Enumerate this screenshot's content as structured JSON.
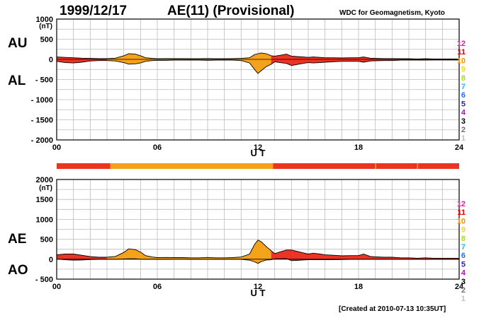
{
  "header": {
    "date": "1999/12/17",
    "title": "AE(11) (Provisional)",
    "source": "WDC for Geomagnetism, Kyoto",
    "created": "[Created at 2010-07-13 10:35UT]"
  },
  "side_labels": {
    "au": "AU",
    "al": "AL",
    "ae": "AE",
    "ao": "AO"
  },
  "legend_station_count": [
    {
      "label": "12",
      "color": "#ff1493"
    },
    {
      "label": "11",
      "color": "#dd0000"
    },
    {
      "label": "10",
      "color": "#ff8c00"
    },
    {
      "label": "9",
      "color": "#ffd700"
    },
    {
      "label": "8",
      "color": "#a0e020"
    },
    {
      "label": "7",
      "color": "#20c0e0"
    },
    {
      "label": "6",
      "color": "#1e70ff"
    },
    {
      "label": "5",
      "color": "#3020c0"
    },
    {
      "label": "4",
      "color": "#cc00cc"
    },
    {
      "label": "3",
      "color": "#000000"
    },
    {
      "label": "2",
      "color": "#707070"
    },
    {
      "label": "1",
      "color": "#c0c0c0"
    }
  ],
  "colors": {
    "eleven_stations": "#ee3322",
    "ten_stations": "#f4a21c"
  },
  "chart_data": [
    {
      "type": "area",
      "panel": "AU/AL",
      "ylabel_unit": "(nT)",
      "xlabel": "U T",
      "xlim": [
        0,
        24
      ],
      "ylim": [
        -2000,
        1000
      ],
      "x_ticks": [
        "00",
        "06",
        "12",
        "18",
        "24"
      ],
      "y_ticks": [
        "1000",
        "500",
        "0",
        "- 500",
        "- 1000",
        "- 1500",
        "- 2000"
      ],
      "y_tick_values": [
        1000,
        500,
        0,
        -500,
        -1000,
        -1500,
        -2000
      ],
      "grid": true,
      "series": [
        {
          "name": "AU",
          "x": [
            0,
            0.5,
            1,
            1.5,
            2,
            2.5,
            3,
            3.5,
            4,
            4.3,
            4.7,
            5,
            5.3,
            5.7,
            6,
            6.5,
            7,
            7.5,
            8,
            8.5,
            9,
            9.5,
            10,
            10.5,
            11,
            11.5,
            11.8,
            12,
            12.2,
            12.5,
            12.8,
            13,
            13.3,
            13.7,
            14,
            14.3,
            14.7,
            15,
            15.3,
            15.7,
            16,
            16.5,
            17,
            17.5,
            18,
            18.3,
            18.7,
            19,
            19.5,
            20,
            20.5,
            21,
            21.5,
            22,
            22.5,
            23,
            23.5,
            24
          ],
          "values": [
            60,
            50,
            40,
            30,
            25,
            20,
            20,
            30,
            90,
            140,
            130,
            90,
            40,
            25,
            15,
            20,
            20,
            20,
            15,
            15,
            20,
            15,
            15,
            20,
            25,
            40,
            120,
            140,
            160,
            140,
            90,
            80,
            100,
            130,
            80,
            70,
            60,
            50,
            60,
            50,
            40,
            40,
            35,
            40,
            40,
            60,
            30,
            25,
            20,
            20,
            15,
            15,
            10,
            15,
            10,
            10,
            10,
            10
          ]
        },
        {
          "name": "AL",
          "x": [
            0,
            0.5,
            1,
            1.5,
            2,
            2.5,
            3,
            3.5,
            4,
            4.3,
            4.7,
            5,
            5.3,
            5.7,
            6,
            6.5,
            7,
            7.5,
            8,
            8.5,
            9,
            9.5,
            10,
            10.5,
            11,
            11.5,
            11.8,
            12,
            12.2,
            12.5,
            12.8,
            13,
            13.3,
            13.7,
            14,
            14.3,
            14.7,
            15,
            15.3,
            15.7,
            16,
            16.5,
            17,
            17.5,
            18,
            18.3,
            18.7,
            19,
            19.5,
            20,
            20.5,
            21,
            21.5,
            22,
            22.5,
            23,
            23.5,
            24
          ],
          "values": [
            -50,
            -80,
            -90,
            -70,
            -40,
            -30,
            -30,
            -40,
            -80,
            -120,
            -110,
            -90,
            -50,
            -30,
            -25,
            -25,
            -20,
            -20,
            -20,
            -20,
            -25,
            -20,
            -20,
            -20,
            -30,
            -90,
            -250,
            -350,
            -280,
            -180,
            -120,
            -60,
            -80,
            -100,
            -150,
            -130,
            -100,
            -80,
            -90,
            -80,
            -70,
            -60,
            -50,
            -50,
            -50,
            -70,
            -40,
            -35,
            -30,
            -30,
            -20,
            -20,
            -15,
            -20,
            -15,
            -15,
            -15,
            -15
          ]
        }
      ]
    },
    {
      "type": "area",
      "panel": "AE/AO",
      "ylabel_unit": "(nT)",
      "xlabel": "U T",
      "xlim": [
        0,
        24
      ],
      "ylim": [
        -500,
        2000
      ],
      "x_ticks": [
        "00",
        "06",
        "12",
        "18",
        "24"
      ],
      "y_ticks": [
        "2000",
        "1500",
        "1000",
        "500",
        "0",
        "- 500"
      ],
      "y_tick_values": [
        2000,
        1500,
        1000,
        500,
        0,
        -500
      ],
      "grid": true,
      "station_bar": [
        {
          "from": 0,
          "to": 3.2,
          "stations": 11
        },
        {
          "from": 3.2,
          "to": 12.9,
          "stations": 10
        },
        {
          "from": 12.9,
          "to": 19.0,
          "stations": 11
        },
        {
          "from": 19.0,
          "to": 19.05,
          "stations": 10
        },
        {
          "from": 19.05,
          "to": 21.5,
          "stations": 11
        },
        {
          "from": 21.5,
          "to": 21.55,
          "stations": 10
        },
        {
          "from": 21.55,
          "to": 24,
          "stations": 11
        }
      ],
      "series": [
        {
          "name": "AE",
          "x": [
            0,
            0.5,
            1,
            1.5,
            2,
            2.5,
            3,
            3.5,
            4,
            4.3,
            4.7,
            5,
            5.3,
            5.7,
            6,
            6.5,
            7,
            7.5,
            8,
            8.5,
            9,
            9.5,
            10,
            10.5,
            11,
            11.5,
            11.8,
            12,
            12.2,
            12.5,
            12.8,
            13,
            13.3,
            13.7,
            14,
            14.3,
            14.7,
            15,
            15.3,
            15.7,
            16,
            16.5,
            17,
            17.5,
            18,
            18.3,
            18.7,
            19,
            19.5,
            20,
            20.5,
            21,
            21.5,
            22,
            22.5,
            23,
            23.5,
            24
          ],
          "values": [
            110,
            130,
            130,
            100,
            65,
            50,
            50,
            70,
            170,
            260,
            240,
            180,
            90,
            55,
            40,
            45,
            40,
            40,
            35,
            35,
            45,
            35,
            35,
            40,
            55,
            130,
            370,
            480,
            440,
            320,
            210,
            140,
            180,
            230,
            230,
            200,
            160,
            130,
            150,
            130,
            110,
            100,
            85,
            90,
            90,
            130,
            70,
            60,
            50,
            50,
            35,
            35,
            25,
            35,
            25,
            25,
            25,
            25
          ]
        },
        {
          "name": "AO",
          "x": [
            0,
            0.5,
            1,
            1.5,
            2,
            2.5,
            3,
            3.5,
            4,
            4.3,
            4.7,
            5,
            5.3,
            5.7,
            6,
            6.5,
            7,
            7.5,
            8,
            8.5,
            9,
            9.5,
            10,
            10.5,
            11,
            11.5,
            11.8,
            12,
            12.2,
            12.5,
            12.8,
            13,
            13.3,
            13.7,
            14,
            14.3,
            14.7,
            15,
            15.3,
            15.7,
            16,
            16.5,
            17,
            17.5,
            18,
            18.3,
            18.7,
            19,
            19.5,
            20,
            20.5,
            21,
            21.5,
            22,
            22.5,
            23,
            23.5,
            24
          ],
          "values": [
            5,
            -15,
            -25,
            -20,
            -8,
            -5,
            -5,
            -5,
            5,
            10,
            10,
            0,
            -5,
            -3,
            -5,
            -3,
            0,
            0,
            -3,
            -3,
            -3,
            -3,
            -3,
            0,
            -3,
            -25,
            -65,
            -105,
            -60,
            -20,
            -15,
            10,
            10,
            15,
            -35,
            -30,
            -20,
            -15,
            -15,
            -15,
            -15,
            -10,
            -8,
            -5,
            -5,
            -5,
            -5,
            -5,
            -5,
            -5,
            -3,
            -3,
            -3,
            -3,
            -3,
            -3,
            -3,
            -3
          ]
        }
      ]
    }
  ]
}
